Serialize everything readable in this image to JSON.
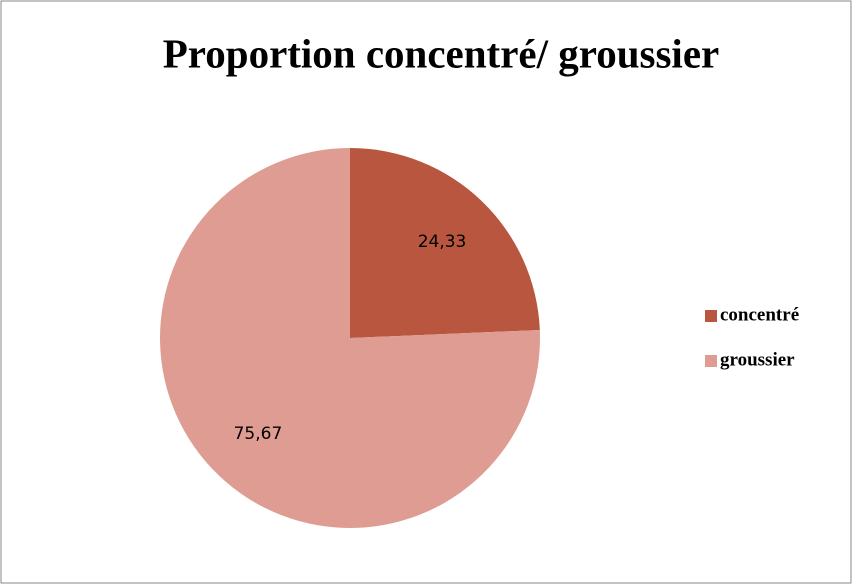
{
  "chart_data": {
    "type": "pie",
    "title": "Proportion concentré/ groussier",
    "categories": [
      "concentré",
      "groussier"
    ],
    "values": [
      24.33,
      75.67
    ],
    "value_labels": [
      "24,33",
      "75,67"
    ],
    "colors": [
      "#b9563f",
      "#df9c92"
    ]
  }
}
